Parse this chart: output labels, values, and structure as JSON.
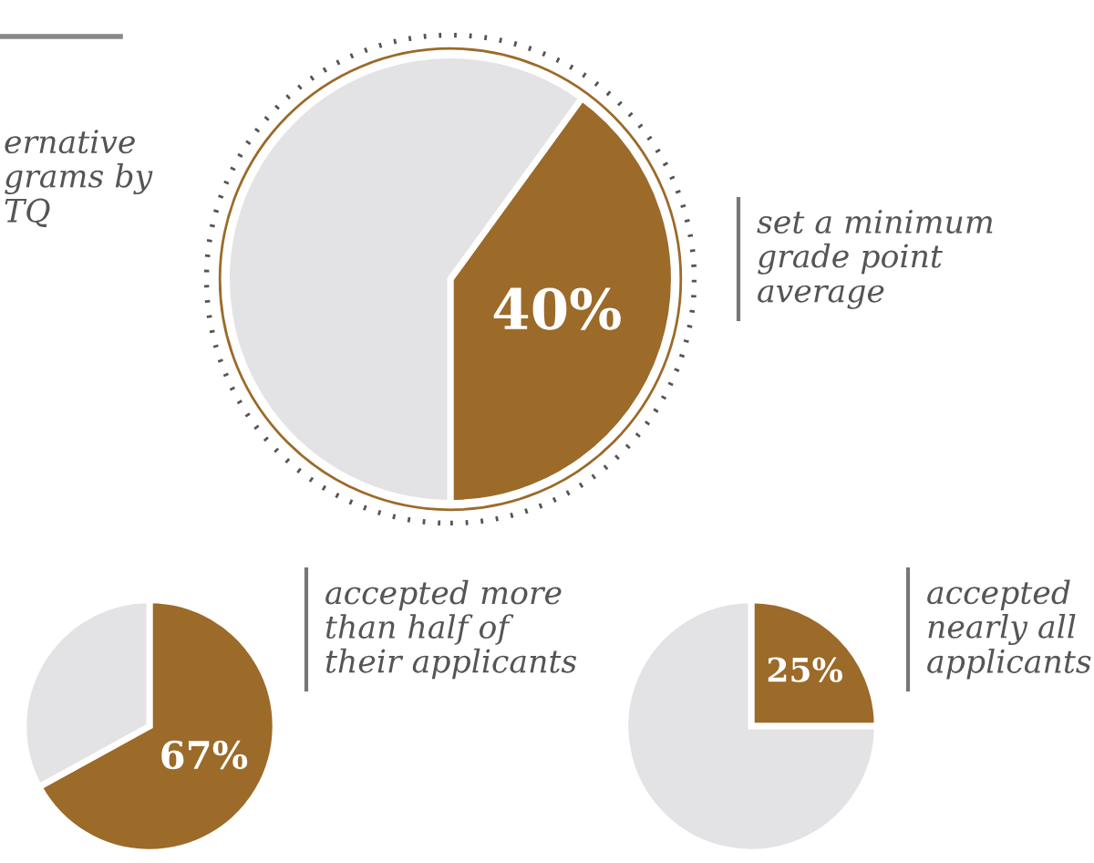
{
  "chart_data": [
    {
      "type": "pie",
      "categories": [
        null,
        null
      ],
      "values": [
        40,
        60
      ],
      "colors": [
        "#9c6a29",
        "#e3e3e5"
      ],
      "value_labels": [
        "40%",
        null
      ],
      "annotations": [
        "ernative\ngrams by\nTQ",
        "set a minimum\ngrade point\naverage"
      ]
    },
    {
      "type": "pie",
      "categories": [
        null,
        null
      ],
      "values": [
        67,
        33
      ],
      "colors": [
        "#9c6a29",
        "#e3e3e5"
      ],
      "value_labels": [
        "67%",
        null
      ],
      "annotations": [
        "accepted more\nthan half of\ntheir applicants"
      ]
    },
    {
      "type": "pie",
      "categories": [
        null,
        null
      ],
      "values": [
        25,
        75
      ],
      "colors": [
        "#9c6a29",
        "#e3e3e5"
      ],
      "value_labels": [
        "25%",
        null
      ],
      "annotations": [
        "accepted\nnearly all\napplicants"
      ]
    }
  ]
}
